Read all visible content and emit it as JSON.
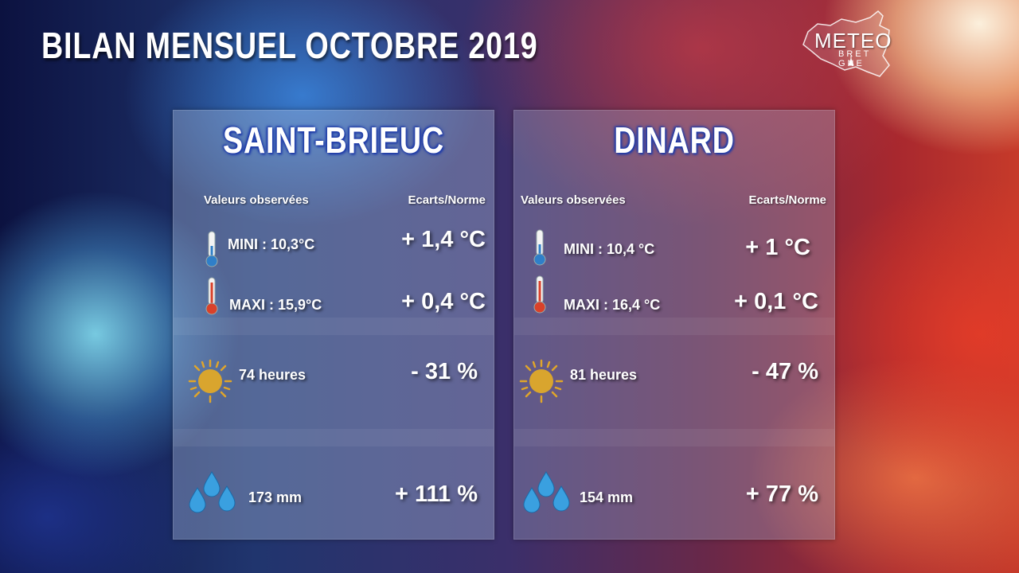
{
  "title": "BILAN MENSUEL OCTOBRE 2019",
  "logo": {
    "main": "METEO",
    "sub": "BRET GNE"
  },
  "headers": {
    "observed": "Valeurs observées",
    "deviation": "Ecarts/Norme"
  },
  "icons": [
    "thermometer-cold-icon",
    "thermometer-hot-icon",
    "sun-icon",
    "raindrops-icon"
  ],
  "colors": {
    "city_glow": "#1d3aa8",
    "sun": "#e0a52a",
    "thermo_cold": "#2f7fc8",
    "thermo_hot": "#d9412a",
    "drops": "#3aa0e0"
  },
  "stations": [
    {
      "city": "SAINT-BRIEUC",
      "mini": "MINI : 10,3°C",
      "mini_dev": "+ 1,4 °C",
      "maxi": "MAXI : 15,9°C",
      "maxi_dev": "+ 0,4 °C",
      "sun": "74  heures",
      "sun_dev": "- 31 %",
      "rain": "173 mm",
      "rain_dev": "+ 111 %"
    },
    {
      "city": "DINARD",
      "mini": "MINI :  10,4 °C",
      "mini_dev": "+  1 °C",
      "maxi": "MAXI : 16,4 °C",
      "maxi_dev": "+  0,1 °C",
      "sun": "81 heures",
      "sun_dev": "- 47 %",
      "rain": "154  mm",
      "rain_dev": "+ 77 %"
    }
  ]
}
